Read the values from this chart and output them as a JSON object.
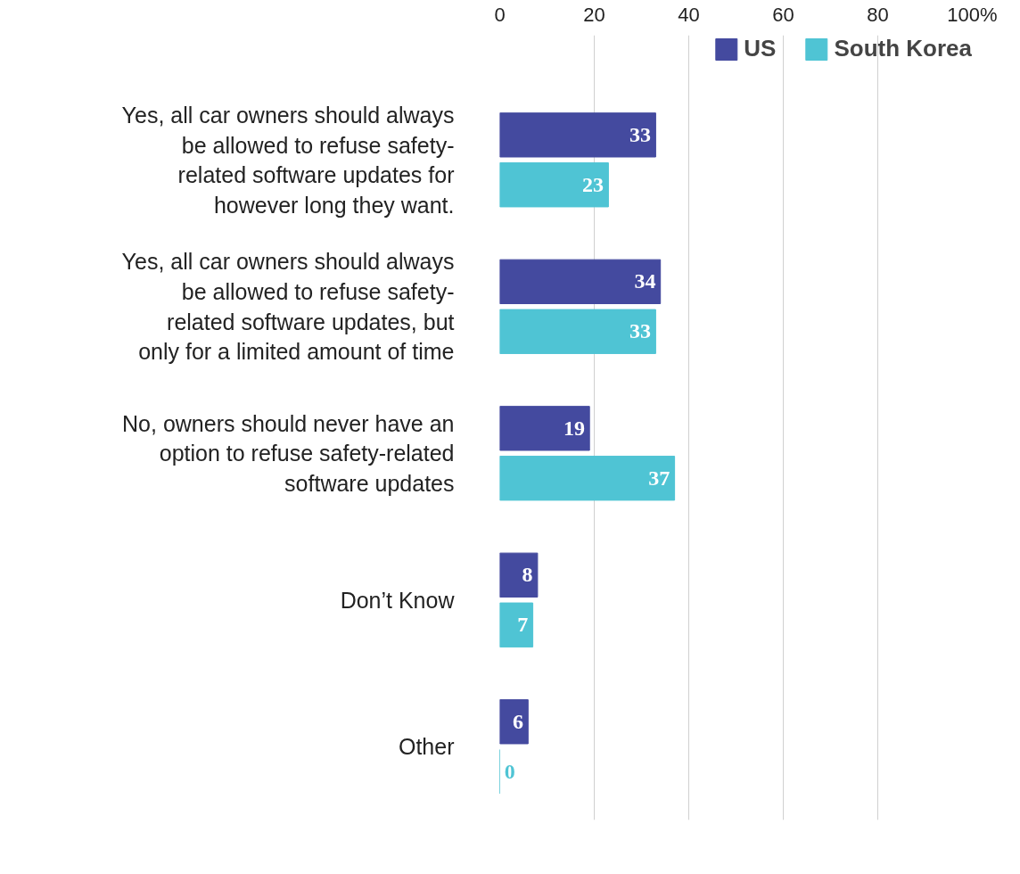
{
  "chart_data": {
    "type": "bar",
    "orientation": "horizontal",
    "categories": [
      "Yes, all car owners should always be allowed to refuse safety-related software updates for however long they want.",
      "Yes, all car owners should always be allowed to refuse safety-related software updates, but only for a limited amount of time",
      "No, owners should never have an option to refuse safety-related software updates",
      "Don’t Know",
      "Other"
    ],
    "series": [
      {
        "name": "US",
        "color": "#444a9f",
        "values": [
          33,
          34,
          19,
          8,
          6
        ]
      },
      {
        "name": "South Korea",
        "color": "#4fc4d4",
        "values": [
          23,
          33,
          37,
          7,
          0
        ]
      }
    ],
    "xlim": [
      0,
      100
    ],
    "xticks": [
      0,
      20,
      40,
      60,
      80,
      {
        "value": 100,
        "label": "100%"
      }
    ],
    "grid": "x",
    "legend": "top right",
    "data_labels": true
  }
}
